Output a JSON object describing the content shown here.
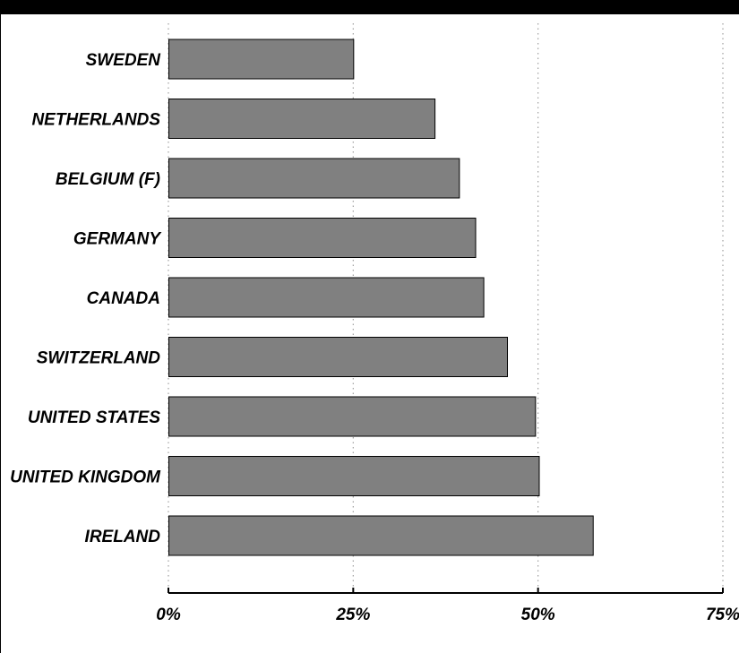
{
  "chart_data": {
    "type": "bar",
    "orientation": "horizontal",
    "categories": [
      "SWEDEN",
      "NETHERLANDS",
      "BELGIUM (F)",
      "GERMANY",
      "CANADA",
      "SWITZERLAND",
      "UNITED STATES",
      "UNITED KINGDOM",
      "IRELAND"
    ],
    "values": [
      25,
      36,
      39.3,
      41.5,
      42.6,
      45.8,
      49.6,
      50.1,
      57.4
    ],
    "xlim": [
      0,
      75
    ],
    "xticks": [
      "0%",
      "25%",
      "50%",
      "75%"
    ],
    "grid": "vertical dotted",
    "bar_color": "#808080",
    "title": "",
    "xlabel": "",
    "ylabel": ""
  }
}
